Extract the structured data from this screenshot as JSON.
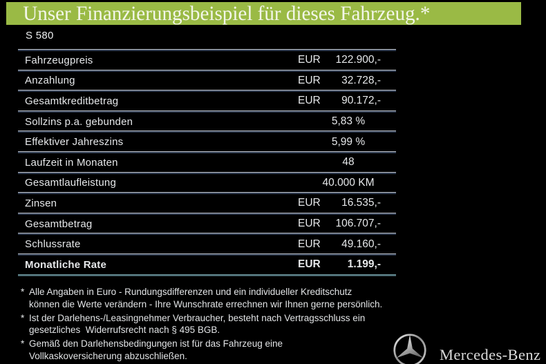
{
  "header": {
    "title": "Unser Finanzierungsbeispiel für dieses Fahrzeug.*",
    "banner_color": "#9aba45",
    "title_color": "#f3f6e9"
  },
  "model": {
    "label": "S 580"
  },
  "table": {
    "rows": [
      {
        "label": "Fahrzeugpreis",
        "currency": "EUR",
        "value": "122.900,-",
        "align": "right",
        "bold": false
      },
      {
        "label": "Anzahlung",
        "currency": "EUR",
        "value": "32.728,-",
        "align": "right",
        "bold": false
      },
      {
        "label": "Gesamtkreditbetrag",
        "currency": "EUR",
        "value": "90.172,-",
        "align": "right",
        "bold": false
      },
      {
        "label": "Sollzins p.a. gebunden",
        "currency": "",
        "value": "5,83 %",
        "align": "center",
        "bold": false
      },
      {
        "label": "Effektiver Jahreszins",
        "currency": "",
        "value": "5,99 %",
        "align": "center",
        "bold": false
      },
      {
        "label": "Laufzeit in Monaten",
        "currency": "",
        "value": "48",
        "align": "center",
        "bold": false
      },
      {
        "label": "Gesamtlaufleistung",
        "currency": "",
        "value": "40.000 KM",
        "align": "center",
        "bold": false
      },
      {
        "label": "Zinsen",
        "currency": "EUR",
        "value": "16.535,-",
        "align": "right",
        "bold": false
      },
      {
        "label": "Gesamtbetrag",
        "currency": "EUR",
        "value": "106.707,-",
        "align": "right",
        "bold": false
      },
      {
        "label": "Schlussrate",
        "currency": "EUR",
        "value": "49.160,-",
        "align": "right",
        "bold": false
      },
      {
        "label": "Monatliche Rate",
        "currency": "EUR",
        "value": "1.199,-",
        "align": "right",
        "bold": true
      }
    ],
    "divider_top_color": "#c3c9d3",
    "divider_shadow_color": "#2e3a4e",
    "final_divider_color": "#587d85"
  },
  "footnotes": [
    {
      "marker": "*",
      "lines": [
        "Alle Angaben in Euro - Rundungsdifferenzen und ein individueller Kreditschutz",
        "können die Werte verändern - Ihre Wunschrate errechnen wir Ihnen gerne persönlich."
      ]
    },
    {
      "marker": "*",
      "lines": [
        "Ist der Darlehens-/Leasingnehmer Verbraucher, besteht nach Vertragsschluss ein",
        "gesetzliches  Widerrufsrecht nach § 495 BGB."
      ]
    },
    {
      "marker": "*",
      "lines": [
        "Gemäß den Darlehensbedingungen ist für das Fahrzeug eine",
        "Vollkaskoversicherung abzuschließen."
      ]
    }
  ],
  "brand": {
    "name": "Mercedes-Benz",
    "logo": "mercedes-star"
  }
}
